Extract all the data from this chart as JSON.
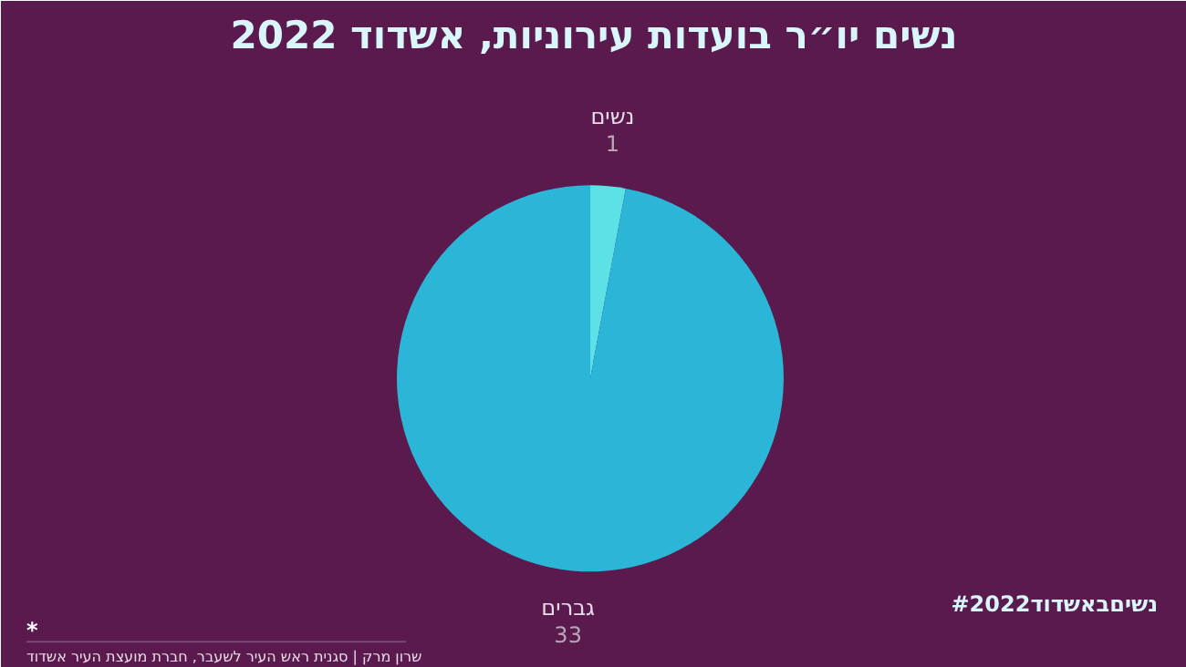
{
  "chart_data": {
    "type": "pie",
    "title": "נשים יו״ר בועדות עירוניות, אשדוד 2022",
    "categories": [
      "נשים",
      "גברים"
    ],
    "values": [
      1,
      33
    ],
    "colors": [
      "#5ce1e6",
      "#2bb5d6"
    ],
    "data_labels": true,
    "annotations": [
      "*",
      "שרון מרק | סגנית ראש העיר לשעבר, חברת מועצת העיר אשדוד",
      "#נשיםבאשדוד2022"
    ]
  }
}
